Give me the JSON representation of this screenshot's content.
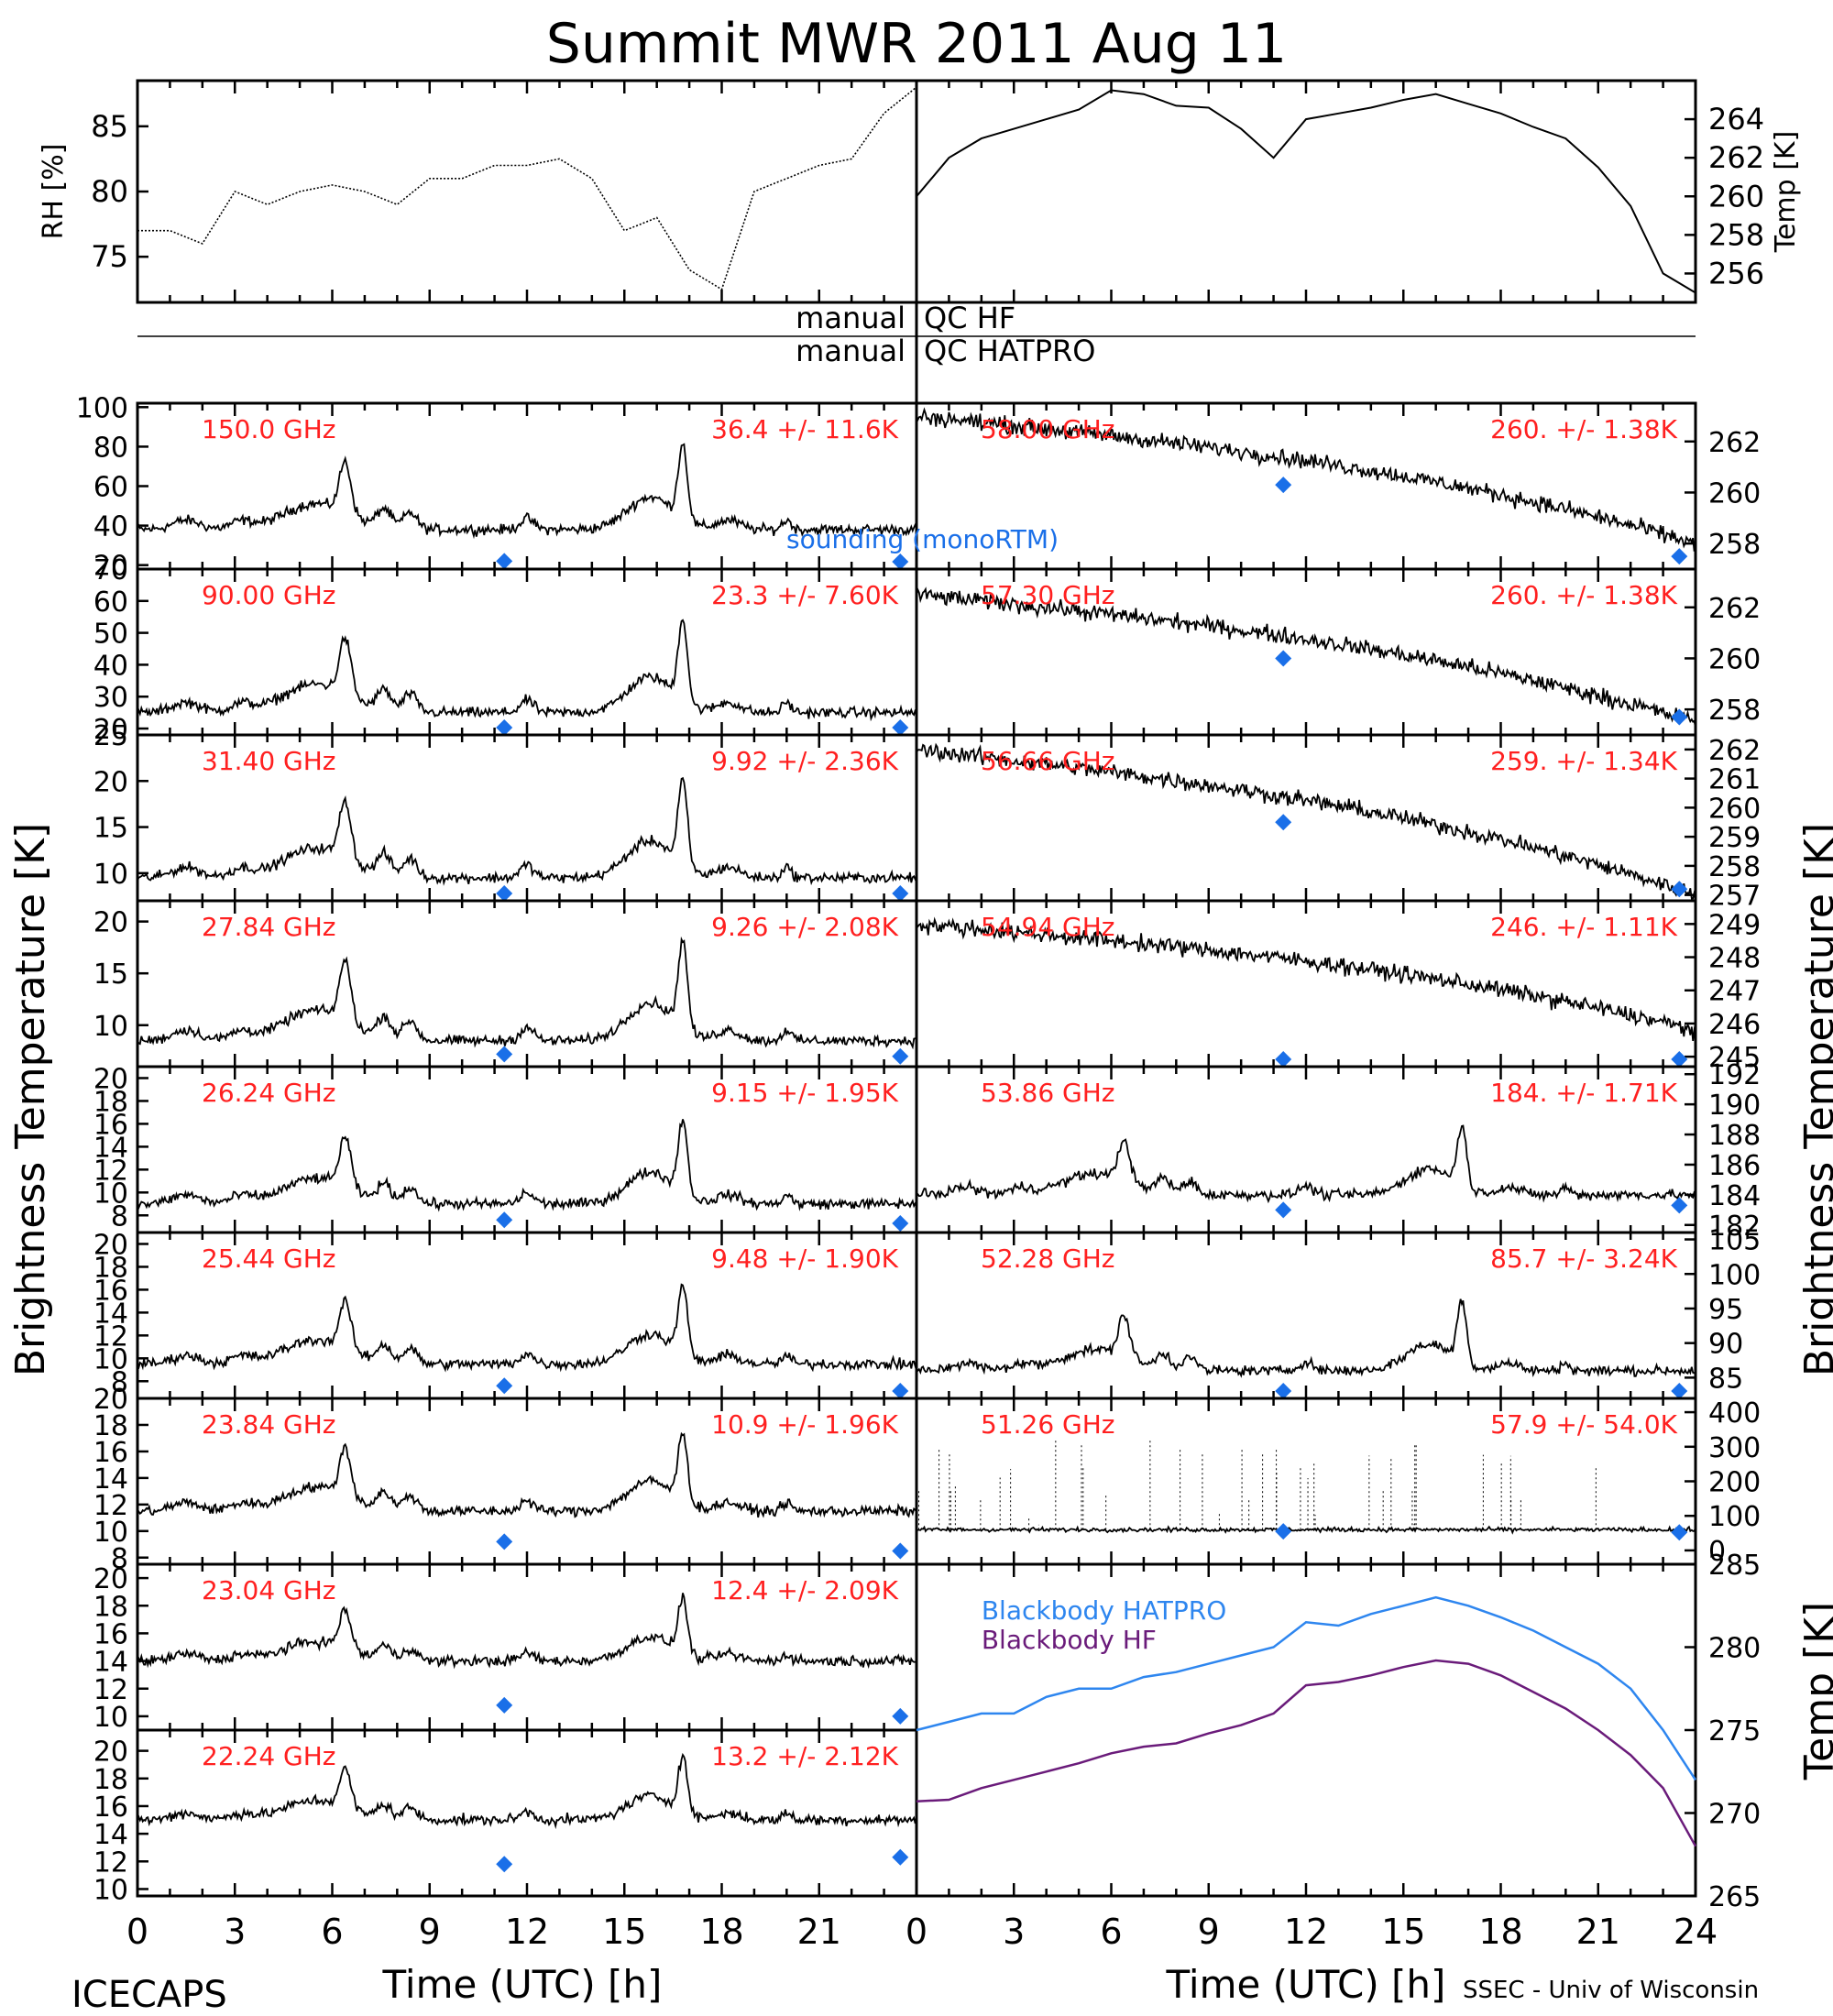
{
  "title": "Summit MWR 2011 Aug 11",
  "footer": {
    "left": "ICECAPS",
    "right": "SSEC - Univ of Wisconsin"
  },
  "colors": {
    "label_red": "#ff2020",
    "sounding_blue": "#1a6fe8",
    "hatpro_blue": "#2e86ef",
    "hf_purple": "#6a1b7a",
    "trace": "#000000"
  },
  "qc": {
    "row1_left": "manual",
    "row1_right": "QC HF",
    "row2_left": "manual",
    "row2_right": "QC HATPRO"
  },
  "axis": {
    "xlabel": "Time (UTC) [h]",
    "left_ylabel": "Brightness Temperature [K]",
    "right_ylabel": "Brightness Temperature [K]",
    "bb_ylabel": "Temp [K]",
    "xticks_left": [
      "0",
      "3",
      "6",
      "9",
      "12",
      "15",
      "18",
      "21"
    ],
    "xticks_right": [
      "0",
      "3",
      "6",
      "9",
      "12",
      "15",
      "18",
      "21",
      "24"
    ]
  },
  "sounding_label": "sounding (monoRTM)",
  "chart_data": [
    {
      "id": "rh",
      "type": "scatter",
      "ylabel": "RH [%]",
      "ylim": [
        71.5,
        88.5
      ],
      "yticks": [
        "75",
        "80",
        "85"
      ],
      "xlim": [
        0,
        24
      ],
      "x": [
        0,
        1,
        2,
        3,
        4,
        5,
        6,
        7,
        8,
        9,
        10,
        11,
        12,
        13,
        14,
        15,
        16,
        17,
        18,
        19,
        20,
        21,
        22,
        23,
        24
      ],
      "values": [
        77,
        77,
        76,
        80,
        79,
        80,
        80.5,
        80,
        79,
        81,
        81,
        82,
        82,
        82.5,
        81,
        77,
        78,
        74,
        72.5,
        80,
        81,
        82,
        82.5,
        86,
        88
      ]
    },
    {
      "id": "temp",
      "type": "line",
      "ylabel": "Temp [K]",
      "ylim": [
        254.5,
        266
      ],
      "yticks": [
        "256",
        "258",
        "260",
        "262",
        "264"
      ],
      "xlim": [
        0,
        24
      ],
      "x": [
        0,
        1,
        2,
        3,
        4,
        5,
        6,
        7,
        8,
        9,
        10,
        11,
        12,
        13,
        14,
        15,
        16,
        17,
        18,
        19,
        20,
        21,
        22,
        23,
        24
      ],
      "values": [
        260,
        262,
        263,
        263.5,
        264,
        264.5,
        265.5,
        265.3,
        264.7,
        264.6,
        263.5,
        262,
        264,
        264.3,
        264.6,
        265,
        265.3,
        264.8,
        264.3,
        263.6,
        263,
        261.5,
        259.5,
        256,
        255
      ]
    },
    {
      "id": "ch150",
      "type": "line",
      "label": "150.0 GHz",
      "stats": "36.4 +/- 11.6K",
      "ylim": [
        18,
        102
      ],
      "yticks": [
        "20",
        "40",
        "60",
        "80",
        "100"
      ],
      "base": 38,
      "peak": 85,
      "sounding": [
        [
          11.3,
          22
        ],
        [
          23.5,
          20
        ]
      ]
    },
    {
      "id": "ch90",
      "type": "line",
      "label": "90.00 GHz",
      "stats": "23.3 +/- 7.60K",
      "ylim": [
        18,
        70
      ],
      "yticks": [
        "20",
        "30",
        "40",
        "50",
        "60",
        "70"
      ],
      "base": 25,
      "peak": 57,
      "sounding": [
        [
          11.3,
          20
        ],
        [
          23.5,
          19
        ]
      ]
    },
    {
      "id": "ch31",
      "type": "line",
      "label": "31.40 GHz",
      "stats": "9.92 +/- 2.36K",
      "ylim": [
        7,
        25
      ],
      "yticks": [
        "10",
        "15",
        "20",
        "25"
      ],
      "base": 9.5,
      "peak": 21,
      "sounding": [
        [
          11.3,
          7.5
        ],
        [
          23.5,
          7.4
        ]
      ]
    },
    {
      "id": "ch2784",
      "type": "line",
      "label": "27.84 GHz",
      "stats": "9.26 +/- 2.08K",
      "ylim": [
        6,
        22
      ],
      "yticks": [
        "10",
        "15",
        "20"
      ],
      "base": 8.5,
      "peak": 19,
      "sounding": [
        [
          11.3,
          7.2
        ],
        [
          23.5,
          7
        ]
      ]
    },
    {
      "id": "ch2624",
      "type": "line",
      "label": "26.24 GHz",
      "stats": "9.15 +/- 1.95K",
      "ylim": [
        6.5,
        21
      ],
      "yticks": [
        "8",
        "10",
        "12",
        "14",
        "16",
        "18",
        "20"
      ],
      "base": 9,
      "peak": 17,
      "sounding": [
        [
          11.3,
          7.6
        ],
        [
          23.5,
          7.3
        ]
      ]
    },
    {
      "id": "ch2544",
      "type": "line",
      "label": "25.44 GHz",
      "stats": "9.48 +/- 1.90K",
      "ylim": [
        6.5,
        21
      ],
      "yticks": [
        "8",
        "10",
        "12",
        "14",
        "16",
        "18",
        "20"
      ],
      "base": 9.5,
      "peak": 17,
      "sounding": [
        [
          11.3,
          7.6
        ],
        [
          23.5,
          7.1
        ]
      ]
    },
    {
      "id": "ch2384",
      "type": "line",
      "label": "23.84 GHz",
      "stats": "10.9 +/- 1.96K",
      "ylim": [
        7.5,
        20
      ],
      "yticks": [
        "8",
        "10",
        "12",
        "14",
        "16",
        "18",
        "20"
      ],
      "base": 11.5,
      "peak": 18,
      "sounding": [
        [
          11.3,
          9.2
        ],
        [
          23.5,
          8.5
        ]
      ]
    },
    {
      "id": "ch2304",
      "type": "line",
      "label": "23.04 GHz",
      "stats": "12.4 +/- 2.09K",
      "ylim": [
        9,
        21
      ],
      "yticks": [
        "10",
        "12",
        "14",
        "16",
        "18",
        "20"
      ],
      "base": 14,
      "peak": 19,
      "sounding": [
        [
          11.3,
          10.8
        ],
        [
          23.5,
          10
        ]
      ]
    },
    {
      "id": "ch2224",
      "type": "line",
      "label": "22.24 GHz",
      "stats": "13.2 +/- 2.12K",
      "ylim": [
        9.5,
        21.5
      ],
      "yticks": [
        "10",
        "12",
        "14",
        "16",
        "18",
        "20"
      ],
      "base": 15,
      "peak": 20,
      "sounding": [
        [
          11.3,
          11.8
        ],
        [
          23.5,
          12.3
        ]
      ]
    },
    {
      "id": "ch5800",
      "type": "line",
      "label": "58.00 GHz",
      "stats": "260. +/- 1.38K",
      "ylim": [
        257,
        263.5
      ],
      "yticks": [
        "258",
        "260",
        "262"
      ],
      "start": 263,
      "end": 258,
      "sounding": [
        [
          11.3,
          260.3
        ],
        [
          23.5,
          257.5
        ]
      ]
    },
    {
      "id": "ch5730",
      "type": "line",
      "label": "57.30 GHz",
      "stats": "260. +/- 1.38K",
      "ylim": [
        257,
        263.5
      ],
      "yticks": [
        "258",
        "260",
        "262"
      ],
      "start": 262.5,
      "end": 257.5,
      "sounding": [
        [
          11.3,
          260
        ],
        [
          23.5,
          257.7
        ]
      ]
    },
    {
      "id": "ch5660",
      "type": "line",
      "label": "56.66 GHz",
      "stats": "259. +/- 1.34K",
      "ylim": [
        256.8,
        262.5
      ],
      "yticks": [
        "257",
        "258",
        "259",
        "260",
        "261",
        "262"
      ],
      "start": 262,
      "end": 257,
      "sounding": [
        [
          11.3,
          259.5
        ],
        [
          23.5,
          257.2
        ]
      ]
    },
    {
      "id": "ch5494",
      "type": "line",
      "label": "54.94 GHz",
      "stats": "246. +/- 1.11K",
      "ylim": [
        244.7,
        249.7
      ],
      "yticks": [
        "245",
        "246",
        "247",
        "248",
        "249"
      ],
      "start": 249,
      "end": 245.8,
      "sounding": [
        [
          11.3,
          244.9
        ],
        [
          23.5,
          244.7
        ]
      ]
    },
    {
      "id": "ch5386",
      "type": "line",
      "label": "53.86 GHz",
      "stats": "184. +/- 1.71K",
      "ylim": [
        181.5,
        192.5
      ],
      "yticks": [
        "182",
        "184",
        "186",
        "188",
        "190",
        "192"
      ],
      "base": 184,
      "peak": 189,
      "sounding": [
        [
          11.3,
          183
        ],
        [
          23.5,
          183.3
        ]
      ]
    },
    {
      "id": "ch5228",
      "type": "line",
      "label": "52.28 GHz",
      "stats": "85.7 +/- 3.24K",
      "ylim": [
        82,
        106
      ],
      "yticks": [
        "85",
        "90",
        "95",
        "100",
        "105"
      ],
      "base": 86,
      "peak": 97,
      "sounding": [
        [
          11.3,
          83
        ],
        [
          23.5,
          82.5
        ]
      ]
    },
    {
      "id": "ch5126",
      "type": "scatter",
      "label": "51.26 GHz",
      "stats": "57.9 +/- 54.0K",
      "ylim": [
        -40,
        440
      ],
      "yticks": [
        "0",
        "100",
        "200",
        "300",
        "400"
      ],
      "base": 60,
      "sounding": [
        [
          11.3,
          55
        ],
        [
          23.5,
          52
        ]
      ]
    },
    {
      "id": "blackbody",
      "type": "line",
      "ylabel": "Temp [K]",
      "ylim": [
        265,
        285
      ],
      "yticks": [
        "265",
        "270",
        "275",
        "280",
        "285"
      ],
      "xlim": [
        0,
        24
      ],
      "series": [
        {
          "name": "Blackbody HATPRO",
          "x": [
            0,
            1,
            2,
            3,
            4,
            5,
            6,
            7,
            8,
            9,
            10,
            11,
            12,
            13,
            14,
            15,
            16,
            17,
            18,
            19,
            20,
            21,
            22,
            23,
            24
          ],
          "values": [
            275,
            275.5,
            276,
            276,
            277,
            277.5,
            277.5,
            278.2,
            278.5,
            279,
            279.5,
            280,
            281.5,
            281.3,
            282,
            282.5,
            283,
            282.5,
            281.8,
            281,
            280,
            279,
            277.5,
            275,
            272
          ]
        },
        {
          "name": "Blackbody HF",
          "x": [
            0,
            1,
            2,
            3,
            4,
            5,
            6,
            7,
            8,
            9,
            10,
            11,
            12,
            13,
            14,
            15,
            16,
            17,
            18,
            19,
            20,
            21,
            22,
            23,
            24
          ],
          "values": [
            270.7,
            270.8,
            271.5,
            272,
            272.5,
            273,
            273.6,
            274,
            274.2,
            274.8,
            275.3,
            276,
            277.7,
            277.9,
            278.3,
            278.8,
            279.2,
            279,
            278.3,
            277.3,
            276.3,
            275,
            273.5,
            271.5,
            268
          ]
        }
      ]
    }
  ]
}
